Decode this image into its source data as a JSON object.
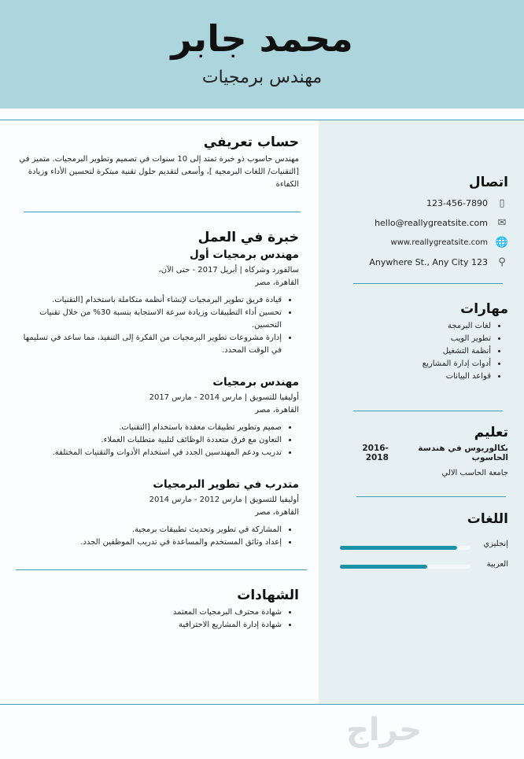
{
  "header": {
    "name": "محمد جابر",
    "title": "مهندس برمجيات"
  },
  "profile": {
    "heading": "حساب تعريفي",
    "text": "مهندس حاسوب ذو خبرة تمتد إلى 10 سنوات في تصميم وتطوير البرمجيات. متميز في [التقنيات/ اللغات البرمجية ]، وأسعى لتقديم حلول تقنية مبتكرة لتحسين الأداء وزيادة الكفاءة"
  },
  "experience": {
    "heading": "خبرة في العمل",
    "jobs": [
      {
        "title": "مهندس برمجيات أول",
        "company": "سالفورد وشركاه | أبريل 2017 - حتى الآن،",
        "location": "القاهرة، مصر",
        "bullets": [
          "قيادة فريق تطوير البرمجيات لإنشاء أنظمة متكاملة باستخدام [التقنيات.",
          "تحسين أداء التطبيقات وزيادة سرعة الاستجابة بنسبة 30% من خلال تقنيات التحسين.",
          "إدارة مشروعات تطوير البرمجيات من الفكرة إلى التنفيذ، مما ساعد في تسليمها في الوقت المحدد."
        ]
      },
      {
        "title": "مهندس برمجيات",
        "company": "أوليفيا للتسويق | مارس 2014 - مارس 2017",
        "location": "القاهرة، مصر",
        "bullets": [
          "صميم وتطوير تطبيقات معقدة باستخدام [التقنيات.",
          "التعاون مع فرق متعددة الوظائف لتلبية متطلبات العملاء.",
          "تدريب ودعم المهندسين الجدد في استخدام الأدوات والتقنيات المختلفة."
        ]
      },
      {
        "title": "متدرب في تطوير البرمجيات",
        "company": "أوليفيا للتسويق | مارس 2012 - مارس 2014",
        "location": "القاهرة، مصر",
        "bullets": [
          "المشاركة في تطوير وتحديث تطبيقات برمجية.",
          "إعداد وثائق المستخدم والمساعدة في تدريب الموظفين الجدد."
        ]
      }
    ]
  },
  "certificates": {
    "heading": "الشهادات",
    "items": [
      "شهادة محترف البرمجيات المعتمد",
      "شهادة إدارة المشاريع الاحترافية"
    ]
  },
  "contact": {
    "heading": "اتصال",
    "phone": "123-456-7890",
    "email": "hello@reallygreatsite.com",
    "website": "www.reallygreatsite.com",
    "address": "123 Anywhere St., Any City",
    "icons": [
      "phone-icon",
      "envelope-icon",
      "globe-icon",
      "location-pin-icon"
    ]
  },
  "skills": {
    "heading": "مهارات",
    "items": [
      "لغات البرمجة",
      "تطوير الويب",
      "أنظمة التشغيل",
      "أدوات إدارة المشاريع",
      "قواعد البيانات"
    ]
  },
  "education": {
    "heading": "تعليم",
    "degree": "بكالوريوس في هندسة الحاسوب",
    "years": "2016-2018",
    "school": "جامعة الحاسب الالي"
  },
  "languages": {
    "heading": "اللغات",
    "items": [
      {
        "name": "إنجليزي",
        "level": 0.9
      },
      {
        "name": "العربية",
        "level": 0.67
      }
    ]
  },
  "colors": {
    "header": "#add5de",
    "sidebar": "#e6eff1",
    "accent": "#1a93a6"
  },
  "watermark": "حراج"
}
